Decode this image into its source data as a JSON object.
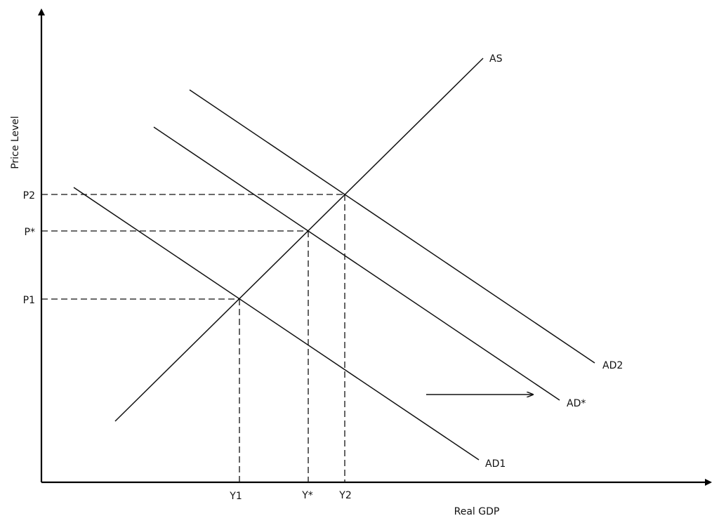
{
  "axes": {
    "y_label": "Price Level",
    "x_label": "Real GDP"
  },
  "curves": {
    "as": "AS",
    "ad1": "AD1",
    "ad_star": "AD*",
    "ad2": "AD2"
  },
  "price_levels": {
    "p1": "P1",
    "p_star": "P*",
    "p2": "P2"
  },
  "outputs": {
    "y1": "Y1",
    "y_star": "Y*",
    "y2": "Y2"
  },
  "shift_arrow": "rightward shift"
}
